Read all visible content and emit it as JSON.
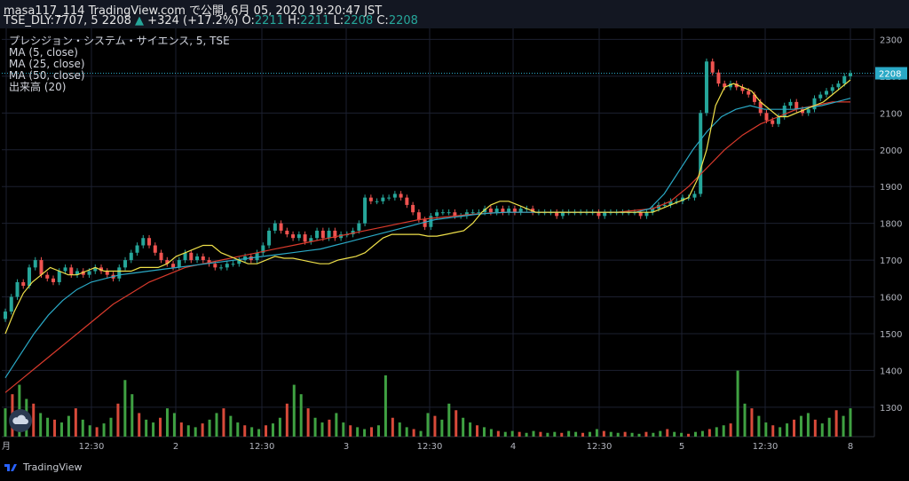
{
  "header": {
    "line1": "masa117_114 TradingView.com で公開, 6月 05, 2020 19:20:47 JST",
    "symbol": "TSE_DLY:7707, 5",
    "last": "2208",
    "change_arrow": "▲",
    "change": "+324 (+17.2%)",
    "o_label": "O:",
    "o": "2211",
    "h_label": "H:",
    "h": "2211",
    "l_label": "L:",
    "l": "2208",
    "c_label": "C:",
    "c": "2208"
  },
  "legend": {
    "title": "プレシジョン・システム・サイエンス, 5, TSE",
    "ma5": "MA (5, close)",
    "ma25": "MA (25, close)",
    "ma50": "MA (50, close)",
    "vol": "出来高 (20)"
  },
  "price_axis": [
    "2300",
    "2200",
    "2100",
    "2000",
    "1900",
    "1800",
    "1700",
    "1600",
    "1500",
    "1400",
    "1300"
  ],
  "last_price_label": "2208",
  "time_axis": [
    "月",
    "12:30",
    "2",
    "12:30",
    "3",
    "12:30",
    "4",
    "12:30",
    "5",
    "12:30",
    "8"
  ],
  "brand": "TradingView",
  "colors": {
    "up": "#26a69a",
    "down": "#ef5350",
    "ma5": "#f0e14a",
    "ma25": "#2aa9c6",
    "ma50": "#d93a2c",
    "vol_up": "#3fa142",
    "vol_down": "#d84a3a"
  },
  "chart_data": {
    "type": "candlestick",
    "ylim": [
      1220,
      2330
    ],
    "close_approx": [
      1560,
      1600,
      1640,
      1630,
      1680,
      1700,
      1660,
      1650,
      1640,
      1670,
      1680,
      1660,
      1670,
      1660,
      1670,
      1680,
      1670,
      1660,
      1650,
      1680,
      1700,
      1720,
      1740,
      1760,
      1740,
      1720,
      1700,
      1690,
      1680,
      1700,
      1720,
      1700,
      1710,
      1700,
      1690,
      1680,
      1680,
      1690,
      1690,
      1700,
      1710,
      1700,
      1720,
      1740,
      1780,
      1800,
      1780,
      1770,
      1760,
      1770,
      1750,
      1760,
      1780,
      1760,
      1780,
      1760,
      1770,
      1770,
      1780,
      1800,
      1870,
      1860,
      1860,
      1870,
      1870,
      1880,
      1870,
      1850,
      1830,
      1810,
      1790,
      1820,
      1830,
      1830,
      1830,
      1820,
      1820,
      1830,
      1830,
      1830,
      1840,
      1830,
      1840,
      1830,
      1840,
      1830,
      1840,
      1840,
      1830,
      1830,
      1830,
      1830,
      1820,
      1830,
      1830,
      1830,
      1830,
      1830,
      1830,
      1820,
      1830,
      1830,
      1830,
      1830,
      1830,
      1830,
      1820,
      1830,
      1840,
      1850,
      1850,
      1860,
      1860,
      1870,
      1870,
      1880,
      2100,
      2240,
      2210,
      2180,
      2170,
      2180,
      2170,
      2160,
      2150,
      2130,
      2100,
      2080,
      2070,
      2090,
      2120,
      2130,
      2110,
      2100,
      2110,
      2140,
      2150,
      2160,
      2170,
      2180,
      2200,
      2208
    ],
    "ma5_approx": [
      1500,
      1560,
      1610,
      1640,
      1660,
      1680,
      1670,
      1660,
      1660,
      1670,
      1680,
      1670,
      1670,
      1670,
      1670,
      1680,
      1680,
      1680,
      1690,
      1710,
      1720,
      1730,
      1740,
      1740,
      1720,
      1710,
      1700,
      1690,
      1690,
      1700,
      1710,
      1705,
      1705,
      1700,
      1695,
      1690,
      1690,
      1700,
      1705,
      1710,
      1720,
      1740,
      1760,
      1770,
      1770,
      1770,
      1770,
      1765,
      1765,
      1770,
      1775,
      1780,
      1800,
      1830,
      1850,
      1860,
      1860,
      1850,
      1840,
      1830,
      1830,
      1830,
      1830,
      1830,
      1830,
      1830,
      1830,
      1830,
      1830,
      1830,
      1830,
      1830,
      1830,
      1840,
      1850,
      1860,
      1870,
      1920,
      2000,
      2120,
      2170,
      2180,
      2170,
      2160,
      2130,
      2110,
      2090,
      2090,
      2100,
      2110,
      2120,
      2130,
      2150,
      2170,
      2190
    ],
    "ma25_approx": [
      1380,
      1440,
      1500,
      1550,
      1590,
      1620,
      1640,
      1650,
      1660,
      1665,
      1670,
      1675,
      1680,
      1685,
      1690,
      1695,
      1700,
      1705,
      1710,
      1715,
      1720,
      1725,
      1730,
      1740,
      1750,
      1760,
      1770,
      1780,
      1790,
      1800,
      1810,
      1815,
      1820,
      1825,
      1828,
      1830,
      1830,
      1830,
      1830,
      1830,
      1830,
      1830,
      1830,
      1830,
      1830,
      1840,
      1880,
      1940,
      2000,
      2050,
      2090,
      2110,
      2120,
      2110,
      2110,
      2110,
      2115,
      2120,
      2130,
      2140
    ],
    "ma50_approx": [
      1340,
      1380,
      1420,
      1460,
      1500,
      1540,
      1580,
      1610,
      1640,
      1660,
      1680,
      1690,
      1700,
      1710,
      1720,
      1730,
      1740,
      1750,
      1760,
      1770,
      1780,
      1790,
      1800,
      1810,
      1815,
      1820,
      1825,
      1828,
      1830,
      1830,
      1830,
      1830,
      1830,
      1830,
      1830,
      1835,
      1840,
      1860,
      1900,
      1950,
      2000,
      2040,
      2070,
      2090,
      2110,
      2120,
      2130,
      2130
    ],
    "volume_approx": [
      30,
      45,
      55,
      40,
      35,
      25,
      20,
      18,
      15,
      22,
      30,
      18,
      12,
      10,
      14,
      20,
      35,
      60,
      45,
      25,
      18,
      15,
      20,
      30,
      25,
      15,
      12,
      10,
      14,
      18,
      25,
      30,
      22,
      15,
      12,
      10,
      8,
      12,
      14,
      20,
      35,
      55,
      45,
      30,
      20,
      15,
      18,
      25,
      15,
      12,
      10,
      8,
      10,
      12,
      65,
      20,
      15,
      10,
      8,
      6,
      25,
      22,
      18,
      35,
      28,
      20,
      15,
      12,
      10,
      8,
      6,
      5,
      6,
      5,
      4,
      6,
      5,
      4,
      5,
      4,
      6,
      5,
      4,
      5,
      8,
      6,
      5,
      4,
      5,
      4,
      3,
      5,
      4,
      6,
      8,
      5,
      4,
      3,
      5,
      6,
      8,
      10,
      12,
      14,
      70,
      35,
      30,
      22,
      15,
      12,
      10,
      14,
      18,
      22,
      25,
      18,
      14,
      20,
      28,
      22,
      30
    ],
    "xlim": [
      "月",
      "8"
    ]
  }
}
